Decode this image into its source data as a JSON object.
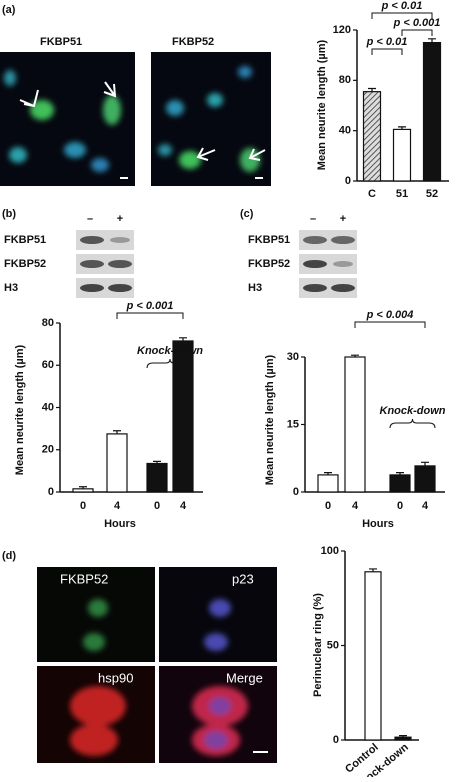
{
  "panels": [
    "(a)",
    "(b)",
    "(c)",
    "(d)"
  ],
  "image_labels_a": [
    "FKBP51",
    "FKBP52"
  ],
  "blot_b": {
    "rows": [
      "FKBP51",
      "FKBP52",
      "H3"
    ],
    "lanes": [
      "–",
      "+"
    ]
  },
  "blot_c": {
    "rows": [
      "FKBP51",
      "FKBP52",
      "H3"
    ],
    "lanes": [
      "–",
      "+"
    ]
  },
  "image_labels_d": [
    "FKBP52",
    "p23",
    "hsp90",
    "Merge"
  ],
  "chart_data": [
    {
      "type": "bar",
      "ylabel": "Mean neurite length (µm)",
      "categories": [
        "C",
        "51",
        "52"
      ],
      "values": [
        71,
        41,
        110
      ],
      "errors": [
        2.5,
        2,
        3
      ],
      "colors": [
        "#aaaaaa",
        "#ffffff",
        "#111111"
      ],
      "hatch": [
        true,
        false,
        false
      ],
      "ylim": [
        0,
        120
      ],
      "yticks": [
        0,
        40,
        80,
        120
      ],
      "annotations": [
        "p < 0.01",
        "p < 0.001",
        "p < 0.01"
      ]
    },
    {
      "type": "bar",
      "ylabel": "Mean neurite length (µm)",
      "xlabel": "Hours",
      "categories": [
        "0",
        "4",
        "0",
        "4"
      ],
      "values": [
        1.5,
        27.5,
        13.5,
        71.5
      ],
      "errors": [
        1,
        1.5,
        1,
        1.5
      ],
      "colors": [
        "#ffffff",
        "#ffffff",
        "#111111",
        "#111111"
      ],
      "ylim": [
        0,
        80
      ],
      "yticks": [
        0,
        20,
        40,
        60,
        80
      ],
      "annotations": [
        "p < 0.001",
        "Knock-down"
      ]
    },
    {
      "type": "bar",
      "ylabel": "Mean neurite length (µm)",
      "xlabel": "Hours",
      "categories": [
        "0",
        "4",
        "0",
        "4"
      ],
      "values": [
        3.8,
        30,
        3.8,
        5.8
      ],
      "errors": [
        0.5,
        0.4,
        0.5,
        0.8
      ],
      "colors": [
        "#ffffff",
        "#ffffff",
        "#111111",
        "#111111"
      ],
      "ylim": [
        0,
        30
      ],
      "yticks": [
        0,
        15,
        30
      ],
      "annotations": [
        "p < 0.004",
        "Knock-down"
      ]
    },
    {
      "type": "bar",
      "ylabel": "Perinuclear ring (%)",
      "categories": [
        "Control",
        "Knock-down"
      ],
      "values": [
        89,
        1.5
      ],
      "errors": [
        1.5,
        0.8
      ],
      "colors": [
        "#ffffff",
        "#111111"
      ],
      "ylim": [
        0,
        100
      ],
      "yticks": [
        0,
        50,
        100
      ]
    }
  ]
}
